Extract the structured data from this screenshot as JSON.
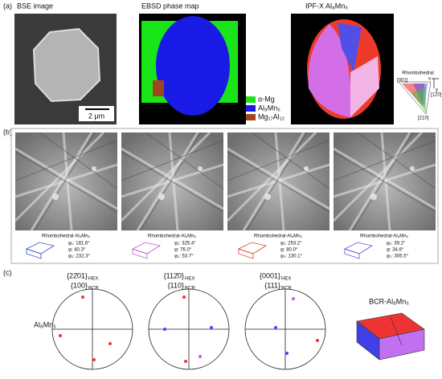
{
  "panel_a": {
    "label": "(a)",
    "bse": {
      "title": "BSE image",
      "scale_bar": "2 μm"
    },
    "ebsd": {
      "title": "EBSD phase map",
      "legend": [
        "α-Mg",
        "Al₈Mn₅",
        "Mg₁₇Al₁₂"
      ]
    },
    "ipf": {
      "title": "IPF-X Al₈Mn₅",
      "key": {
        "title": "Rhombohedral",
        "x": "x",
        "y": "y",
        "corners": [
          "[001]",
          "[120]",
          "[210]"
        ]
      }
    }
  },
  "panel_b": {
    "label": "(b)",
    "patterns": [
      {
        "phase": "Rhombohedral-Al₈Mn₅",
        "euler": [
          "φ₁: 181.6°",
          "φ: 40.3°",
          "φ₂: 232.3°"
        ]
      },
      {
        "phase": "Rhombohedral-Al₈Mn₅",
        "euler": [
          "φ₁: 325.4°",
          "φ: 76.0°",
          "φ₂: 53.7°"
        ]
      },
      {
        "phase": "Rhombohedral-Al₈Mn₅",
        "euler": [
          "φ₁: 253.2°",
          "φ: 80.0°",
          "φ₂: 130.1°"
        ]
      },
      {
        "phase": "Rhombohedral-Al₈Mn₅",
        "euler": [
          "φ₁: 39.2°",
          "φ: 34.6°",
          "φ₂: 305.5°"
        ]
      }
    ]
  },
  "panel_c": {
    "label": "(c)",
    "row_label": "Al₈Mn₅",
    "unit_cell_label": "BCR-Al₈Mn₅",
    "pole_figures": [
      {
        "hex": "{22̄01}",
        "hex_sub": "HEX",
        "bcr": "{100}",
        "bcr_sub": "BCR"
      },
      {
        "hex": "{112̄0}",
        "hex_sub": "HEX",
        "bcr": "{110}",
        "bcr_sub": "BCR"
      },
      {
        "hex": "{0001}",
        "hex_sub": "HEX",
        "bcr": "{111}",
        "bcr_sub": "BCR"
      }
    ]
  }
}
